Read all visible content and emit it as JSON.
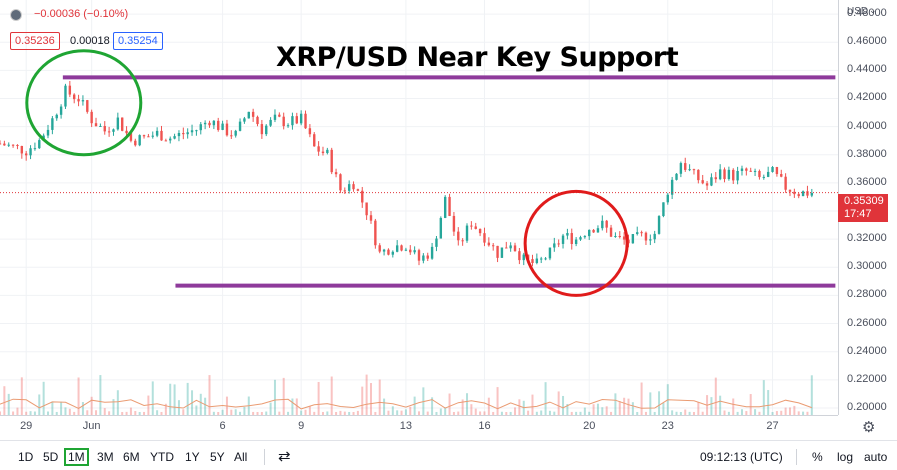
{
  "headline": "XRP/USD Near Key Support",
  "legend": {
    "change": "−0.00036 (−0.10%)",
    "bid": "0.35236",
    "spread": "0.00018",
    "ask": "0.35254"
  },
  "price_axis": {
    "currency": "USD",
    "current_price": "0.35309",
    "countdown": "17:47"
  },
  "toolbar": {
    "ranges": [
      "1D",
      "5D",
      "1M",
      "3M",
      "6M",
      "YTD",
      "1Y",
      "5Y",
      "All"
    ],
    "active_range": "1M",
    "clock": "09:12:13 (UTC)",
    "percent": "%",
    "log": "log",
    "auto": "auto"
  },
  "colors": {
    "resistance_line": "#8e3a9b",
    "support_line": "#8e3a9b",
    "resistance_circle": "#1fa533",
    "support_circle": "#e01b1b",
    "up": "#26a69a",
    "down": "#ef5350",
    "price_tag": "#e0343a",
    "volume": "#ea9b72"
  },
  "chart_data": {
    "type": "line",
    "title": "XRP/USD Near Key Support",
    "ylim": [
      0.195,
      0.49
    ],
    "y_ticks": [
      "0.48000",
      "0.46000",
      "0.44000",
      "0.42000",
      "0.40000",
      "0.38000",
      "0.36000",
      "0.34000",
      "0.32000",
      "0.30000",
      "0.28000",
      "0.26000",
      "0.24000",
      "0.22000",
      "0.20000"
    ],
    "x_ticks": [
      "29",
      "Jun",
      "6",
      "9",
      "13",
      "16",
      "20",
      "23",
      "27"
    ],
    "x_tick_days": [
      -2.5,
      0,
      5,
      8,
      12,
      15,
      19,
      22,
      26
    ],
    "xlim": [
      -3.5,
      28.5
    ],
    "series": [
      {
        "x": [
          -3.5,
          -2.5,
          -2,
          -1.5,
          -1,
          -0.5,
          0,
          0.5,
          1,
          1.5,
          2,
          2.5,
          3,
          3.5,
          4,
          4.5,
          5,
          5.5,
          6,
          6.5,
          7,
          7.5,
          8,
          8.5,
          9,
          9.5,
          10,
          10.5,
          11,
          11.5,
          12,
          12.5,
          13,
          13.5,
          14,
          14.5,
          15,
          15.5,
          16,
          16.5,
          17,
          17.5,
          18,
          18.5,
          19,
          19.5,
          20,
          20.5,
          21,
          21.5,
          22,
          22.5,
          23,
          23.5,
          24,
          24.5,
          25,
          25.5,
          26,
          26.5,
          27,
          27.5
        ],
        "values": [
          0.388,
          0.383,
          0.39,
          0.405,
          0.425,
          0.42,
          0.405,
          0.397,
          0.405,
          0.39,
          0.392,
          0.395,
          0.392,
          0.395,
          0.398,
          0.405,
          0.398,
          0.394,
          0.412,
          0.398,
          0.405,
          0.403,
          0.405,
          0.385,
          0.38,
          0.355,
          0.36,
          0.34,
          0.31,
          0.315,
          0.316,
          0.305,
          0.312,
          0.348,
          0.315,
          0.332,
          0.322,
          0.31,
          0.318,
          0.305,
          0.302,
          0.31,
          0.322,
          0.32,
          0.328,
          0.33,
          0.321,
          0.318,
          0.322,
          0.324,
          0.355,
          0.375,
          0.365,
          0.358,
          0.368,
          0.365,
          0.368,
          0.363,
          0.367,
          0.357,
          0.353,
          0.353
        ]
      }
    ],
    "annotations": {
      "resistance": 0.435,
      "support": 0.287,
      "current_price": 0.35309
    }
  }
}
